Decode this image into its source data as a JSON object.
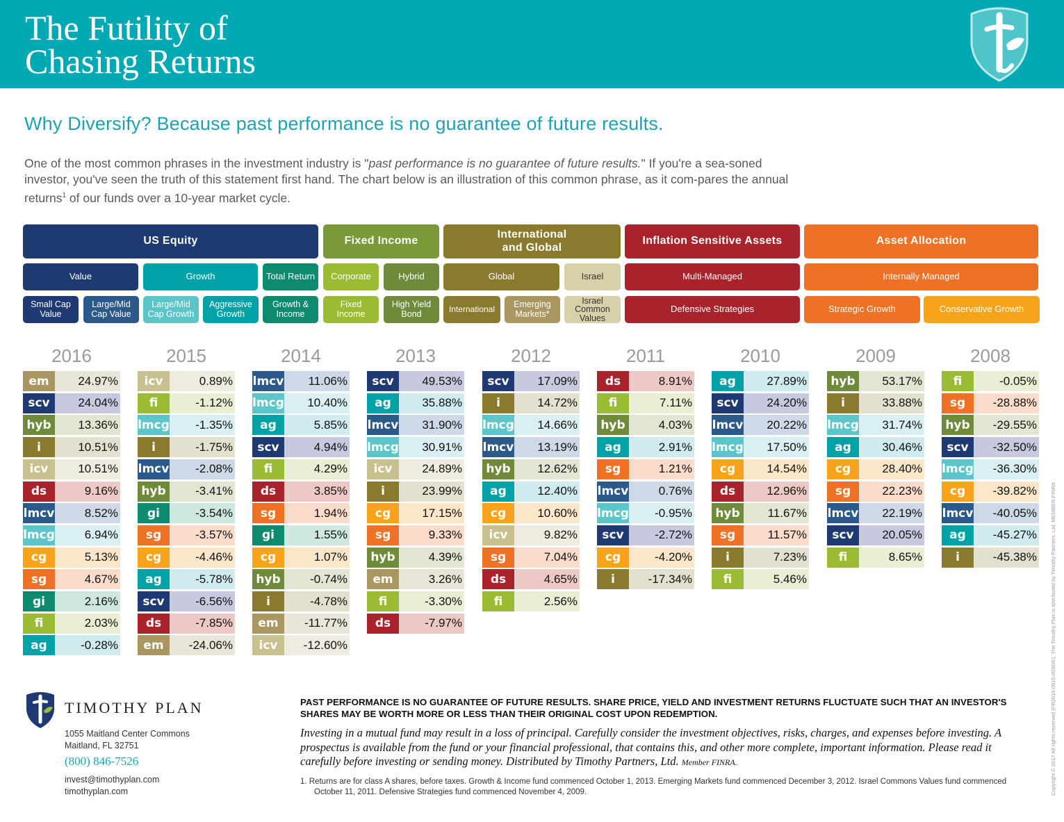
{
  "header": {
    "title_line1": "The Futility of",
    "title_line2": "Chasing Returns"
  },
  "subtitle": "Why Diversify? Because past performance is no guarantee of future results.",
  "intro": {
    "part1": "One of the most common phrases in the investment industry is \"",
    "quote": "past performance is no guarantee of future results.",
    "part2": "\" If you're a sea-soned investor, you've seen the truth of this statement first hand. The chart below is an illustration of this common phrase, as it com-pares the annual returns",
    "sup": "1",
    "part3": " of our funds over a 10-year market cycle."
  },
  "categories": {
    "us_equity": "US Equity",
    "fixed_income": "Fixed Income",
    "international_global": "International and Global",
    "inflation": "Inflation Sensitive Assets",
    "asset_allocation": "Asset Allocation",
    "value": "Value",
    "growth": "Growth",
    "total_return": "Total Return",
    "corporate": "Corporate",
    "hybrid": "Hybrid",
    "global": "Global",
    "israel": "Israel",
    "multi_managed": "Multi-Managed",
    "internally_managed": "Internally Managed",
    "small_cap_value": "Small Cap Value",
    "large_mid_cap_value": "Large/Mid Cap Value",
    "large_mid_cap_growth": "Large/Mid Cap Growth",
    "aggressive_growth": "Aggressive Growth",
    "growth_income": "Growth & Income",
    "fixed_income_fund": "Fixed Income",
    "high_yield_bond": "High Yield Bond",
    "international": "International",
    "emerging_markets": "Emerging Markets*",
    "israel_common_values": "Israel Common Values",
    "defensive_strategies": "Defensive Strategies",
    "strategic_growth": "Strategic Growth",
    "conservative_growth": "Conservative Growth"
  },
  "fund_colors": {
    "scv": "#1f3a72",
    "lmcv": "#2b5a8a",
    "lmcg": "#5bc5c9",
    "ag": "#00a1a7",
    "gi": "#0e8a6f",
    "fi": "#9bbb34",
    "hyb": "#6f8a3b",
    "i": "#8a7a2e",
    "em": "#a99660",
    "icv": "#c8c08f",
    "ds": "#a8232c",
    "sg": "#ee7125",
    "cg": "#f7a31b"
  },
  "value_colors": {
    "scv": "#c7cadf",
    "lmcv": "#cfd8e7",
    "lmcg": "#daeff1",
    "ag": "#d0ebee",
    "gi": "#cfe8de",
    "fi": "#e8efd2",
    "hyb": "#e2e5d2",
    "i": "#e4e0cf",
    "em": "#e9e5d8",
    "icv": "#eeece0",
    "ds": "#ecc9c5",
    "sg": "#fbdccb",
    "cg": "#fce6c9"
  },
  "chart_data": {
    "type": "table",
    "title": "The Futility of Chasing Returns",
    "years": [
      {
        "year": "2016",
        "rows": [
          [
            "em",
            "24.97%"
          ],
          [
            "scv",
            "24.04%"
          ],
          [
            "hyb",
            "13.36%"
          ],
          [
            "i",
            "10.51%"
          ],
          [
            "icv",
            "10.51%"
          ],
          [
            "ds",
            "9.16%"
          ],
          [
            "lmcv",
            "8.52%"
          ],
          [
            "lmcg",
            "6.94%"
          ],
          [
            "cg",
            "5.13%"
          ],
          [
            "sg",
            "4.67%"
          ],
          [
            "gi",
            "2.16%"
          ],
          [
            "fi",
            "2.03%"
          ],
          [
            "ag",
            "-0.28%"
          ]
        ]
      },
      {
        "year": "2015",
        "rows": [
          [
            "icv",
            "0.89%"
          ],
          [
            "fi",
            "-1.12%"
          ],
          [
            "lmcg",
            "-1.35%"
          ],
          [
            "i",
            "-1.75%"
          ],
          [
            "lmcv",
            "-2.08%"
          ],
          [
            "hyb",
            "-3.41%"
          ],
          [
            "gi",
            "-3.54%"
          ],
          [
            "sg",
            "-3.57%"
          ],
          [
            "cg",
            "-4.46%"
          ],
          [
            "ag",
            "-5.78%"
          ],
          [
            "scv",
            "-6.56%"
          ],
          [
            "ds",
            "-7.85%"
          ],
          [
            "em",
            "-24.06%"
          ]
        ]
      },
      {
        "year": "2014",
        "rows": [
          [
            "lmcv",
            "11.06%"
          ],
          [
            "lmcg",
            "10.40%"
          ],
          [
            "ag",
            "5.85%"
          ],
          [
            "scv",
            "4.94%"
          ],
          [
            "fi",
            "4.29%"
          ],
          [
            "ds",
            "3.85%"
          ],
          [
            "sg",
            "1.94%"
          ],
          [
            "gi",
            "1.55%"
          ],
          [
            "cg",
            "1.07%"
          ],
          [
            "hyb",
            "-0.74%"
          ],
          [
            "i",
            "-4.78%"
          ],
          [
            "em",
            "-11.77%"
          ],
          [
            "icv",
            "-12.60%"
          ]
        ]
      },
      {
        "year": "2013",
        "rows": [
          [
            "scv",
            "49.53%"
          ],
          [
            "ag",
            "35.88%"
          ],
          [
            "lmcv",
            "31.90%"
          ],
          [
            "lmcg",
            "30.91%"
          ],
          [
            "icv",
            "24.89%"
          ],
          [
            "i",
            "23.99%"
          ],
          [
            "cg",
            "17.15%"
          ],
          [
            "sg",
            "9.33%"
          ],
          [
            "hyb",
            "4.39%"
          ],
          [
            "em",
            "3.26%"
          ],
          [
            "fi",
            "-3.30%"
          ],
          [
            "ds",
            "-7.97%"
          ]
        ]
      },
      {
        "year": "2012",
        "rows": [
          [
            "scv",
            "17.09%"
          ],
          [
            "i",
            "14.72%"
          ],
          [
            "lmcg",
            "14.66%"
          ],
          [
            "lmcv",
            "13.19%"
          ],
          [
            "hyb",
            "12.62%"
          ],
          [
            "ag",
            "12.40%"
          ],
          [
            "cg",
            "10.60%"
          ],
          [
            "icv",
            "9.82%"
          ],
          [
            "sg",
            "7.04%"
          ],
          [
            "ds",
            "4.65%"
          ],
          [
            "fi",
            "2.56%"
          ]
        ]
      },
      {
        "year": "2011",
        "rows": [
          [
            "ds",
            "8.91%"
          ],
          [
            "fi",
            "7.11%"
          ],
          [
            "hyb",
            "4.03%"
          ],
          [
            "ag",
            "2.91%"
          ],
          [
            "sg",
            "1.21%"
          ],
          [
            "lmcv",
            "0.76%"
          ],
          [
            "lmcg",
            "-0.95%"
          ],
          [
            "scv",
            "-2.72%"
          ],
          [
            "cg",
            "-4.20%"
          ],
          [
            "i",
            "-17.34%"
          ]
        ]
      },
      {
        "year": "2010",
        "rows": [
          [
            "ag",
            "27.89%"
          ],
          [
            "scv",
            "24.20%"
          ],
          [
            "lmcv",
            "20.22%"
          ],
          [
            "lmcg",
            "17.50%"
          ],
          [
            "cg",
            "14.54%"
          ],
          [
            "ds",
            "12.96%"
          ],
          [
            "hyb",
            "11.67%"
          ],
          [
            "sg",
            "11.57%"
          ],
          [
            "i",
            "7.23%"
          ],
          [
            "fi",
            "5.46%"
          ]
        ]
      },
      {
        "year": "2009",
        "rows": [
          [
            "hyb",
            "53.17%"
          ],
          [
            "i",
            "33.88%"
          ],
          [
            "lmcg",
            "31.74%"
          ],
          [
            "ag",
            "30.46%"
          ],
          [
            "cg",
            "28.40%"
          ],
          [
            "sg",
            "22.23%"
          ],
          [
            "lmcv",
            "22.19%"
          ],
          [
            "scv",
            "20.05%"
          ],
          [
            "fi",
            "8.65%"
          ]
        ]
      },
      {
        "year": "2008",
        "rows": [
          [
            "fi",
            "-0.05%"
          ],
          [
            "sg",
            "-28.88%"
          ],
          [
            "hyb",
            "-29.55%"
          ],
          [
            "scv",
            "-32.50%"
          ],
          [
            "lmcg",
            "-36.30%"
          ],
          [
            "cg",
            "-39.82%"
          ],
          [
            "lmcv",
            "-40.05%"
          ],
          [
            "ag",
            "-45.27%"
          ],
          [
            "i",
            "-45.38%"
          ]
        ]
      }
    ]
  },
  "footer": {
    "brand": "TIMOTHY PLAN",
    "address1": "1055 Maitland Center Commons",
    "address2": "Maitland, FL 32751",
    "phone": "(800) 846-7526",
    "email": "invest@timothyplan.com",
    "website": "timothyplan.com",
    "disclaimer_bold": "PAST PERFORMANCE IS NO GUARANTEE OF FUTURE RESULTS.  SHARE PRICE, YIELD AND INVESTMENT RETURNS FLUCTUATE SUCH THAT AN INVESTOR'S SHARES MAY BE WORTH MORE OR LESS THAN THEIR ORIGINAL COST UPON REDEMPTION.",
    "disclaimer_italic": "Investing in a mutual fund may result in a loss of principal. Carefully consider the investment objectives, risks, charges, and expenses before investing. A prospectus is available from the fund or your financial professional, that contains this, and other more complete, important information. Please read it carefully before investing or sending money. Distributed by Timothy Partners, Ltd.",
    "member": "Member FINRA.",
    "footnote": "1.  Returns are for class A shares, before taxes. Growth & Income fund commenced October 1, 2013. Emerging Markets fund commenced December 3, 2012. Israel Commons Values fund commenced October 11, 2011. Defensive Strategies fund commenced November 4, 2009.",
    "side_text": "Copyright © 2017 All rights reserved (FR2016-0610-0090/E). The Timothy Plan is distributed by Timothy Partners, Ltd. MEMBER FINRA"
  }
}
